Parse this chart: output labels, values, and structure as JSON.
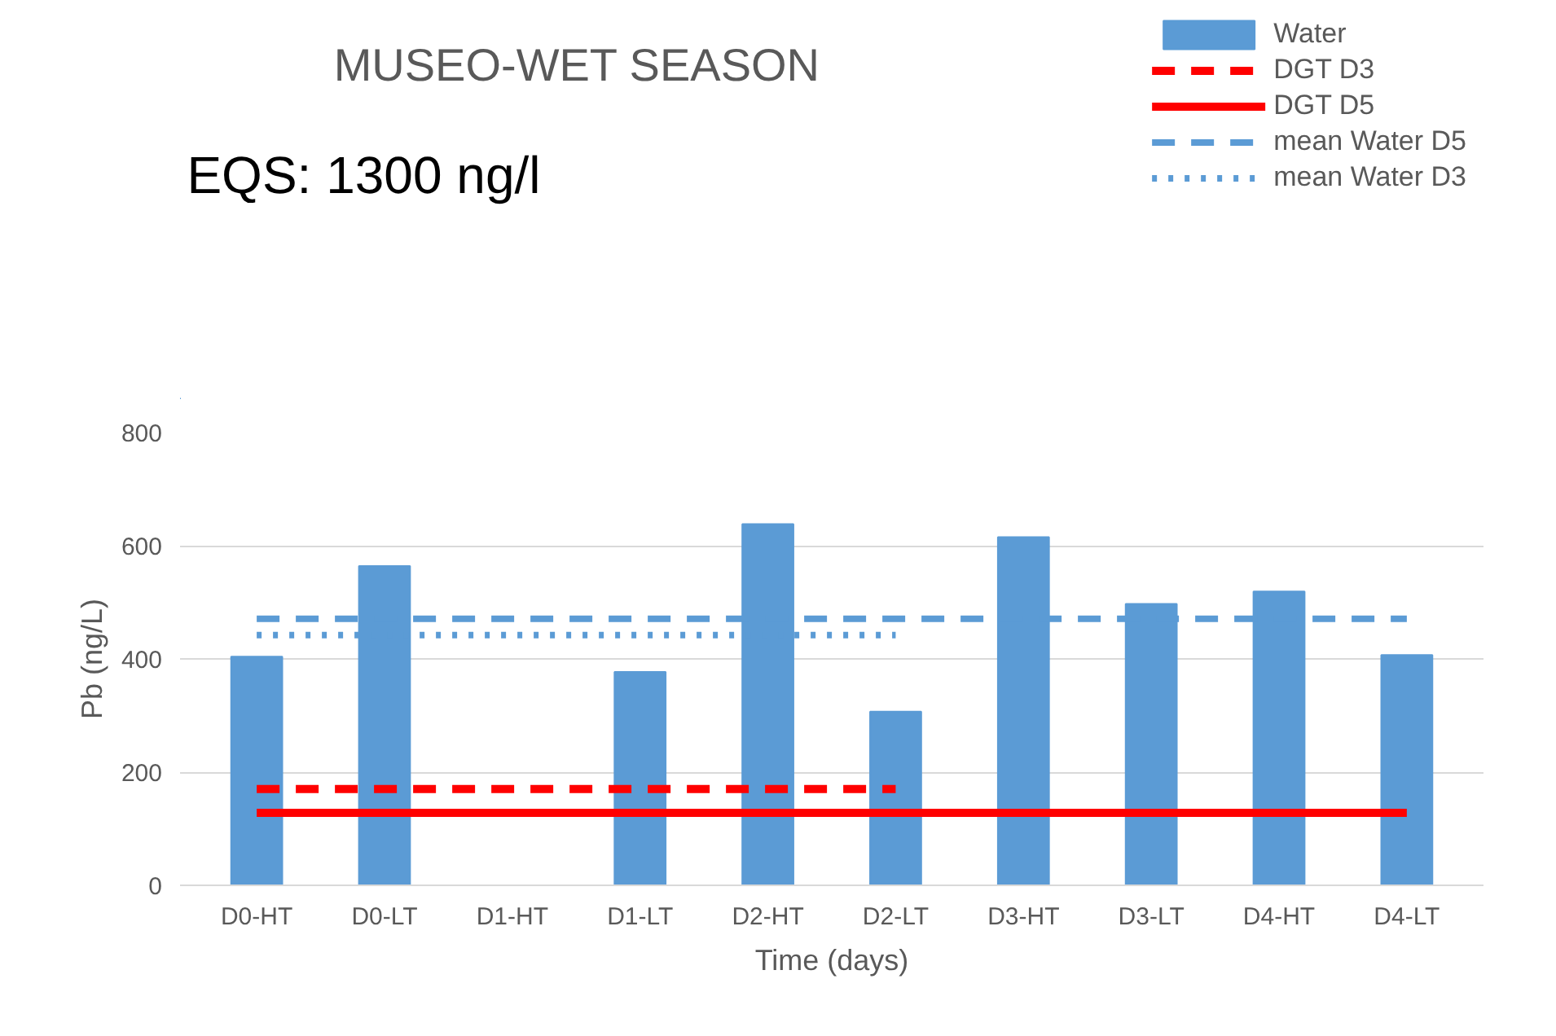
{
  "chart_data": {
    "type": "bar",
    "title": "MUSEO-WET SEASON",
    "xlabel": "Time (days)",
    "ylabel": "Pb (ng/L)",
    "categories": [
      "D0-HT",
      "D0-LT",
      "D1-HT",
      "D1-LT",
      "D2-HT",
      "D2-LT",
      "D3-HT",
      "D3-LT",
      "D4-HT",
      "D4-LT"
    ],
    "series": [
      {
        "name": "Water",
        "color": "#5b9bd5",
        "values": [
          404,
          564,
          null,
          377,
          638,
          307,
          615,
          497,
          519,
          407
        ]
      },
      {
        "name": "DGT D3",
        "type": "line",
        "color": "#ff0000",
        "line_style": "dashed",
        "values": [
          170,
          170,
          170,
          170,
          170,
          170,
          null,
          null,
          null,
          null
        ]
      },
      {
        "name": "DGT D5",
        "type": "line",
        "color": "#ff0000",
        "line_style": "solid",
        "values": [
          128,
          128,
          128,
          128,
          128,
          128,
          128,
          128,
          128,
          128
        ]
      },
      {
        "name": "mean Water D5",
        "type": "line",
        "color": "#5b9bd5",
        "line_style": "dashed",
        "values": [
          471,
          471,
          471,
          471,
          471,
          471,
          471,
          471,
          471,
          471
        ]
      },
      {
        "name": "mean Water D3",
        "type": "line",
        "color": "#5b9bd5",
        "line_style": "dotted",
        "values": [
          442,
          442,
          442,
          442,
          442,
          442,
          null,
          null,
          null,
          null
        ]
      }
    ],
    "ylim": [
      0,
      800
    ],
    "yticks": [
      0,
      200,
      400,
      600,
      800
    ],
    "grid": "y",
    "legend": "top right",
    "annotations": [
      "EQS: 1300 ng/l"
    ]
  }
}
